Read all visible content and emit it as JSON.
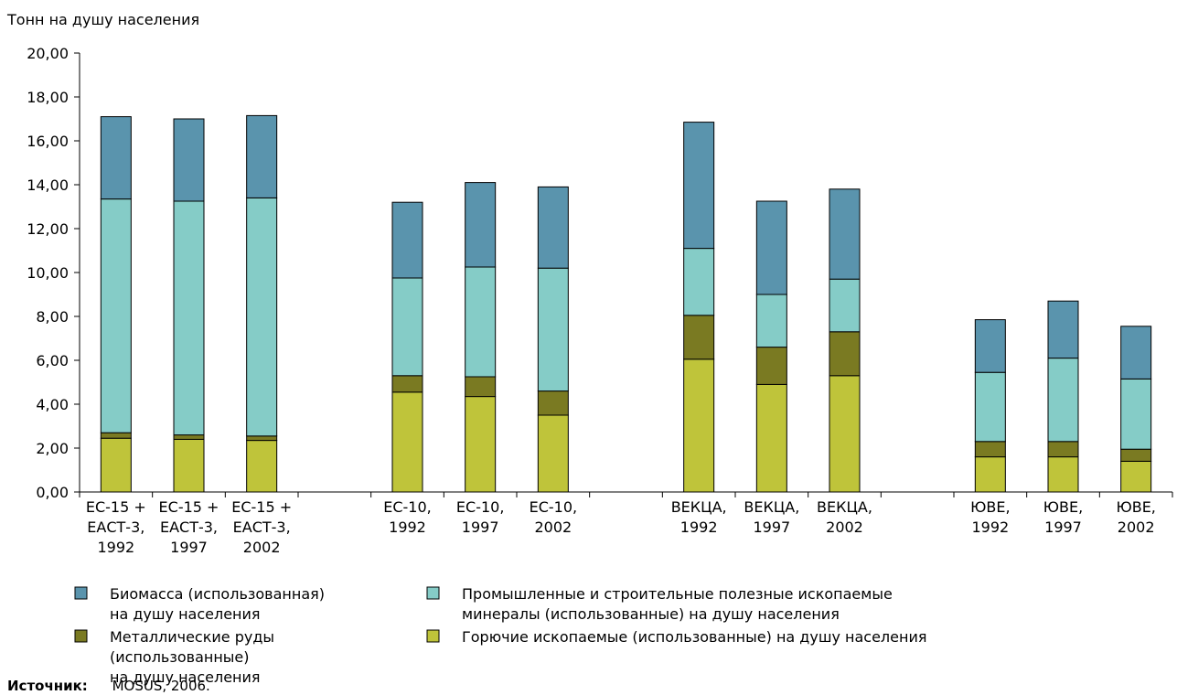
{
  "chart_data": {
    "type": "bar",
    "stacked": true,
    "ylabel": "Тонн на душу населения",
    "ylim": [
      0,
      20
    ],
    "yticks": [
      "0,00",
      "2,00",
      "4,00",
      "6,00",
      "8,00",
      "10,00",
      "12,00",
      "14,00",
      "16,00",
      "18,00",
      "20,00"
    ],
    "grid": false,
    "legend_position": "bottom",
    "categories": [
      [
        "ЕС-15 +",
        "ЕАСТ-3,",
        "1992"
      ],
      [
        "ЕС-15 +",
        "ЕАСТ-3,",
        "1997"
      ],
      [
        "ЕС-15 +",
        "ЕАСТ-3,",
        "2002"
      ],
      null,
      [
        "ЕС-10,",
        "1992"
      ],
      [
        "ЕС-10,",
        "1997"
      ],
      [
        "ЕС-10,",
        "2002"
      ],
      null,
      [
        "ВЕКЦА,",
        "1992"
      ],
      [
        "ВЕКЦА,",
        "1997"
      ],
      [
        "ВЕКЦА,",
        "2002"
      ],
      null,
      [
        "ЮВЕ,",
        "1992"
      ],
      [
        "ЮВЕ,",
        "1997"
      ],
      [
        "ЮВЕ,",
        "2002"
      ]
    ],
    "series": [
      {
        "name": "Горючие ископаемые (использованные) на душу населения",
        "color": "#bfc43a",
        "values": [
          2.45,
          2.4,
          2.35,
          null,
          4.55,
          4.35,
          3.5,
          null,
          6.05,
          4.9,
          5.3,
          null,
          1.6,
          1.6,
          1.4
        ]
      },
      {
        "name": "Металлические руды (использованные) на душу населения",
        "color": "#7a7a22",
        "values": [
          0.25,
          0.2,
          0.2,
          null,
          0.75,
          0.9,
          1.1,
          null,
          2.0,
          1.7,
          2.0,
          null,
          0.7,
          0.7,
          0.55
        ]
      },
      {
        "name": "Промышленные и строительные полезные ископаемые минералы (использованные) на душу населения",
        "color": "#85ccc7",
        "values": [
          10.65,
          10.65,
          10.85,
          null,
          4.45,
          5.0,
          5.6,
          null,
          3.05,
          2.4,
          2.4,
          null,
          3.15,
          3.8,
          3.2
        ]
      },
      {
        "name": "Биомасса (использованная) на душу населения",
        "color": "#5a94ad",
        "values": [
          3.75,
          3.75,
          3.75,
          null,
          3.45,
          3.85,
          3.7,
          null,
          5.75,
          4.25,
          4.1,
          null,
          2.4,
          2.6,
          2.4
        ]
      }
    ],
    "legend": [
      {
        "lines": [
          "Биомасса (использованная)",
          "на душу населения"
        ],
        "color": "#5a94ad"
      },
      {
        "lines": [
          "Промышленные и строительные полезные ископаемые",
          "минералы (использованные) на душу населения"
        ],
        "color": "#85ccc7"
      },
      {
        "lines": [
          "Металлические руды",
          "(использованные)",
          "на душу населения"
        ],
        "color": "#7a7a22"
      },
      {
        "lines": [
          "Горючие ископаемые (использованные) на душу населения"
        ],
        "color": "#bfc43a"
      }
    ]
  },
  "source": {
    "label": "Источник:",
    "text": "MOSUS, 2006."
  }
}
